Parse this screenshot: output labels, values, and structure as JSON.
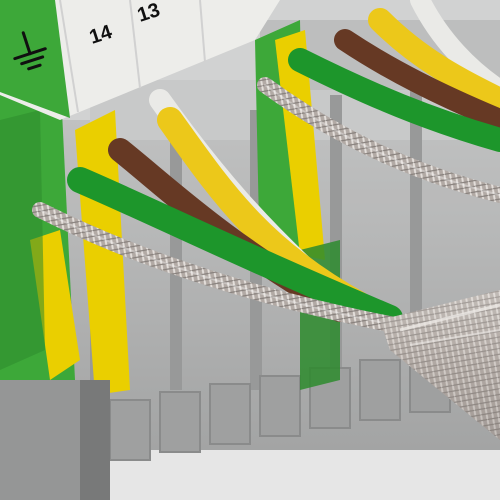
{
  "photo": {
    "subject": "terminal-block-photo",
    "markers": [
      {
        "label": "14"
      },
      {
        "label": "13"
      }
    ],
    "ground_symbol": "ground-icon",
    "colors": {
      "housing_green": "#3fae3b",
      "housing_yellow": "#f2d600",
      "housing_gray": "#b9baba",
      "wire_green": "#1e9b2d",
      "wire_brown": "#6a3b26",
      "wire_yellow": "#f4cf1b",
      "wire_white": "#f2f2ef",
      "shield_silver": "#b9b2ac"
    }
  }
}
